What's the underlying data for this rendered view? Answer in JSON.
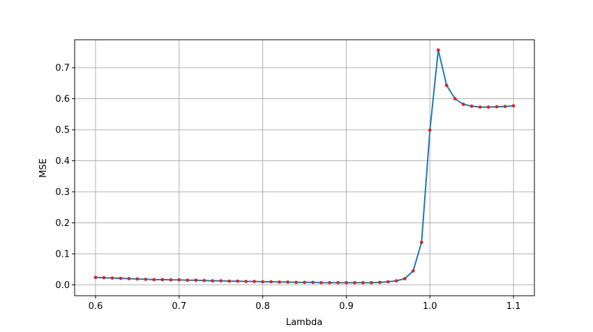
{
  "chart_data": {
    "type": "line",
    "xlabel": "Lambda",
    "ylabel": "MSE",
    "xlim": [
      0.575,
      1.125
    ],
    "ylim": [
      -0.035,
      0.79
    ],
    "x_ticks": [
      0.6,
      0.7,
      0.8,
      0.9,
      1.0,
      1.1
    ],
    "x_tick_labels": [
      "0.6",
      "0.7",
      "0.8",
      "0.9",
      "1.0",
      "1.1"
    ],
    "y_ticks": [
      0.0,
      0.1,
      0.2,
      0.3,
      0.4,
      0.5,
      0.6,
      0.7
    ],
    "y_tick_labels": [
      "0.0",
      "0.1",
      "0.2",
      "0.3",
      "0.4",
      "0.5",
      "0.6",
      "0.7"
    ],
    "grid": true,
    "line_color": "#1f77b4",
    "marker_color": "#d62728",
    "x": [
      0.6,
      0.61,
      0.62,
      0.63,
      0.64,
      0.65,
      0.66,
      0.67,
      0.68,
      0.69,
      0.7,
      0.71,
      0.72,
      0.73,
      0.74,
      0.75,
      0.76,
      0.77,
      0.78,
      0.79,
      0.8,
      0.81,
      0.82,
      0.83,
      0.84,
      0.85,
      0.86,
      0.87,
      0.88,
      0.89,
      0.9,
      0.91,
      0.92,
      0.93,
      0.94,
      0.95,
      0.96,
      0.97,
      0.98,
      0.99,
      1.0,
      1.01,
      1.02,
      1.03,
      1.04,
      1.05,
      1.06,
      1.07,
      1.08,
      1.09,
      1.1
    ],
    "y": [
      0.024,
      0.023,
      0.022,
      0.021,
      0.02,
      0.019,
      0.018,
      0.017,
      0.017,
      0.016,
      0.016,
      0.015,
      0.015,
      0.014,
      0.013,
      0.013,
      0.012,
      0.012,
      0.011,
      0.011,
      0.01,
      0.01,
      0.009,
      0.009,
      0.008,
      0.008,
      0.008,
      0.007,
      0.007,
      0.007,
      0.007,
      0.007,
      0.007,
      0.007,
      0.008,
      0.01,
      0.013,
      0.02,
      0.045,
      0.137,
      0.499,
      0.757,
      0.643,
      0.6,
      0.582,
      0.576,
      0.573,
      0.573,
      0.574,
      0.575,
      0.577
    ]
  }
}
